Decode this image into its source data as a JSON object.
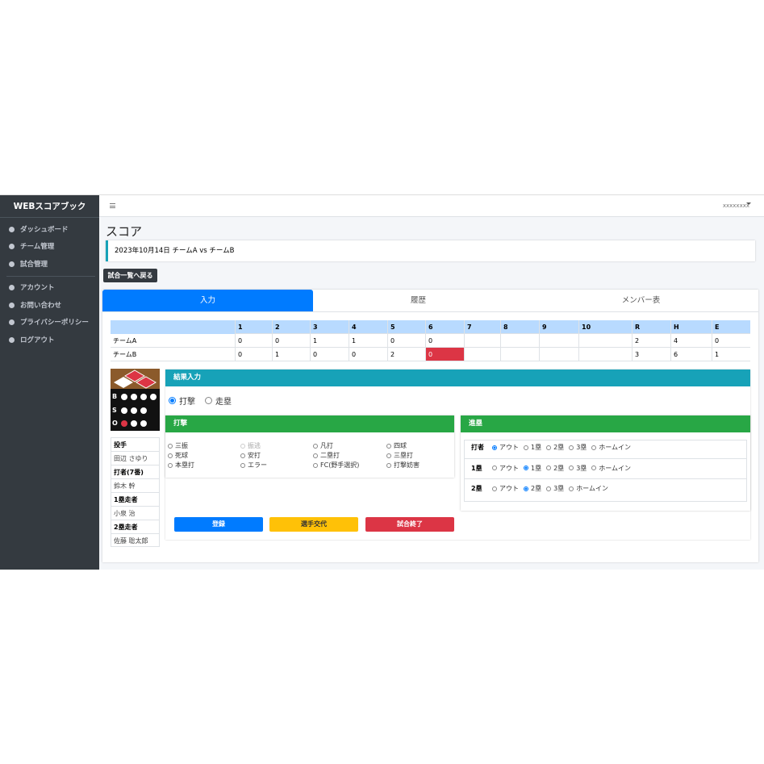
{
  "sidebar": {
    "brand": "WEBスコアブック",
    "menu": [
      [
        "ダッシュボード",
        "チーム管理",
        "試合管理"
      ],
      [
        "アカウント",
        "お問い合わせ",
        "プライバシーポリシー",
        "ログアウト"
      ]
    ]
  },
  "topbar": {
    "user": "xxxxxxxx"
  },
  "page": {
    "title": "スコア",
    "game": "2023年10月14日 チームA vs チームB",
    "back_button": "試合一覧へ戻る"
  },
  "tabs": {
    "items": [
      "入力",
      "履歴",
      "メンバー表"
    ],
    "active": 0
  },
  "scoreboard": {
    "columns": [
      "1",
      "2",
      "3",
      "4",
      "5",
      "6",
      "7",
      "8",
      "9",
      "10",
      "R",
      "H",
      "E"
    ],
    "rows": [
      {
        "team": "チームA",
        "cells": [
          0,
          0,
          1,
          1,
          0,
          0,
          null,
          null,
          null,
          null,
          2,
          4,
          0
        ]
      },
      {
        "team": "チームB",
        "cells": [
          0,
          1,
          0,
          0,
          2,
          0,
          null,
          null,
          null,
          null,
          3,
          6,
          1
        ]
      }
    ],
    "highlight": {
      "row": 1,
      "cell": 5,
      "color": "#dc3545"
    }
  },
  "count": [
    {
      "label": "B",
      "dots": 4,
      "lit": 0
    },
    {
      "label": "S",
      "dots": 3,
      "lit": 0
    },
    {
      "label": "O",
      "dots": 3,
      "lit": 1
    }
  ],
  "players": [
    {
      "role": "投手",
      "name": "田辺 さゆり"
    },
    {
      "role": "打者(7番)",
      "name": "鈴木 幹"
    },
    {
      "role": "1塁走者",
      "name": "小泉 治"
    },
    {
      "role": "2塁走者",
      "name": "佐藤 聡太郎"
    }
  ],
  "result": {
    "title": "結果入力",
    "modes": [
      "打撃",
      "走塁"
    ],
    "mode": 0,
    "batting": {
      "title": "打撃",
      "options": [
        "三振",
        "振逃",
        "凡打",
        "四球",
        "死球",
        "安打",
        "二塁打",
        "三塁打",
        "本塁打",
        "エラー",
        "FC(野手選択)",
        "打撃妨害"
      ],
      "disabled": [
        1
      ]
    },
    "advance": {
      "title": "進塁",
      "rows": [
        {
          "label": "打者",
          "options": [
            "アウト",
            "1塁",
            "2塁",
            "3塁",
            "ホームイン"
          ],
          "selected": 0
        },
        {
          "label": "1塁",
          "options": [
            "アウト",
            "1塁",
            "2塁",
            "3塁",
            "ホームイン"
          ],
          "selected": 1
        },
        {
          "label": "2塁",
          "options": [
            "アウト",
            "2塁",
            "3塁",
            "ホームイン"
          ],
          "selected": 1
        }
      ]
    },
    "buttons": [
      "登録",
      "選手交代",
      "試合終了"
    ]
  }
}
